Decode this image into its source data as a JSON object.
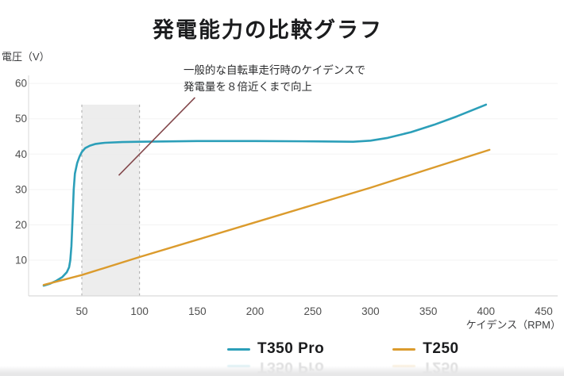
{
  "chart_data": {
    "type": "line",
    "title": "発電能力の比較グラフ",
    "ylabel": "電圧（V）",
    "xlabel": "ケイデンス（RPM）",
    "xlim": [
      0,
      462
    ],
    "ylim": [
      0,
      60
    ],
    "x_ticks": [
      50,
      100,
      150,
      200,
      250,
      300,
      350,
      400,
      450
    ],
    "y_ticks": [
      10,
      20,
      30,
      40,
      50,
      60
    ],
    "grid": "faint horizontal gridlines at each y tick",
    "legend_position": "bottom-center",
    "axis_color": "#d9d9d9",
    "tick_label_color": "#4f4f4f",
    "highlight_band": {
      "x_from": 50,
      "x_to": 100,
      "y_top_v": 54,
      "fill": "#ebebeb",
      "border_color": "#a9a9a9",
      "border_style": "dashed"
    },
    "annotation": {
      "line1": "一般的な自転車走行時のケイデンスで",
      "line2": "発電量を８倍近くまで向上",
      "pointer_color": "#83484C",
      "pointer_from": {
        "rpm": 148,
        "v": 56
      },
      "pointer_to": {
        "rpm": 82,
        "v": 34
      }
    },
    "series": [
      {
        "name": "T350 Pro",
        "color": "#2C9FB9",
        "width": 2.6,
        "points": [
          [
            17,
            2.8
          ],
          [
            22,
            3.3
          ],
          [
            28,
            4.2
          ],
          [
            33,
            5.2
          ],
          [
            37,
            6.6
          ],
          [
            39,
            8
          ],
          [
            40,
            10
          ],
          [
            41,
            14
          ],
          [
            42,
            22
          ],
          [
            43,
            30
          ],
          [
            44,
            34.5
          ],
          [
            46,
            37.5
          ],
          [
            48,
            39.3
          ],
          [
            50,
            40.6
          ],
          [
            53,
            41.7
          ],
          [
            57,
            42.4
          ],
          [
            62,
            42.9
          ],
          [
            70,
            43.2
          ],
          [
            85,
            43.4
          ],
          [
            100,
            43.5
          ],
          [
            150,
            43.7
          ],
          [
            200,
            43.7
          ],
          [
            250,
            43.6
          ],
          [
            285,
            43.5
          ],
          [
            300,
            43.8
          ],
          [
            315,
            44.6
          ],
          [
            335,
            46.2
          ],
          [
            355,
            48.3
          ],
          [
            375,
            50.7
          ],
          [
            400,
            54
          ]
        ]
      },
      {
        "name": "T250",
        "color": "#DB9B2D",
        "width": 2.4,
        "points": [
          [
            17,
            3.0
          ],
          [
            50,
            5.8
          ],
          [
            100,
            10.9
          ],
          [
            150,
            15.8
          ],
          [
            200,
            20.7
          ],
          [
            250,
            25.6
          ],
          [
            300,
            30.5
          ],
          [
            350,
            35.7
          ],
          [
            403,
            41.2
          ]
        ]
      }
    ]
  }
}
